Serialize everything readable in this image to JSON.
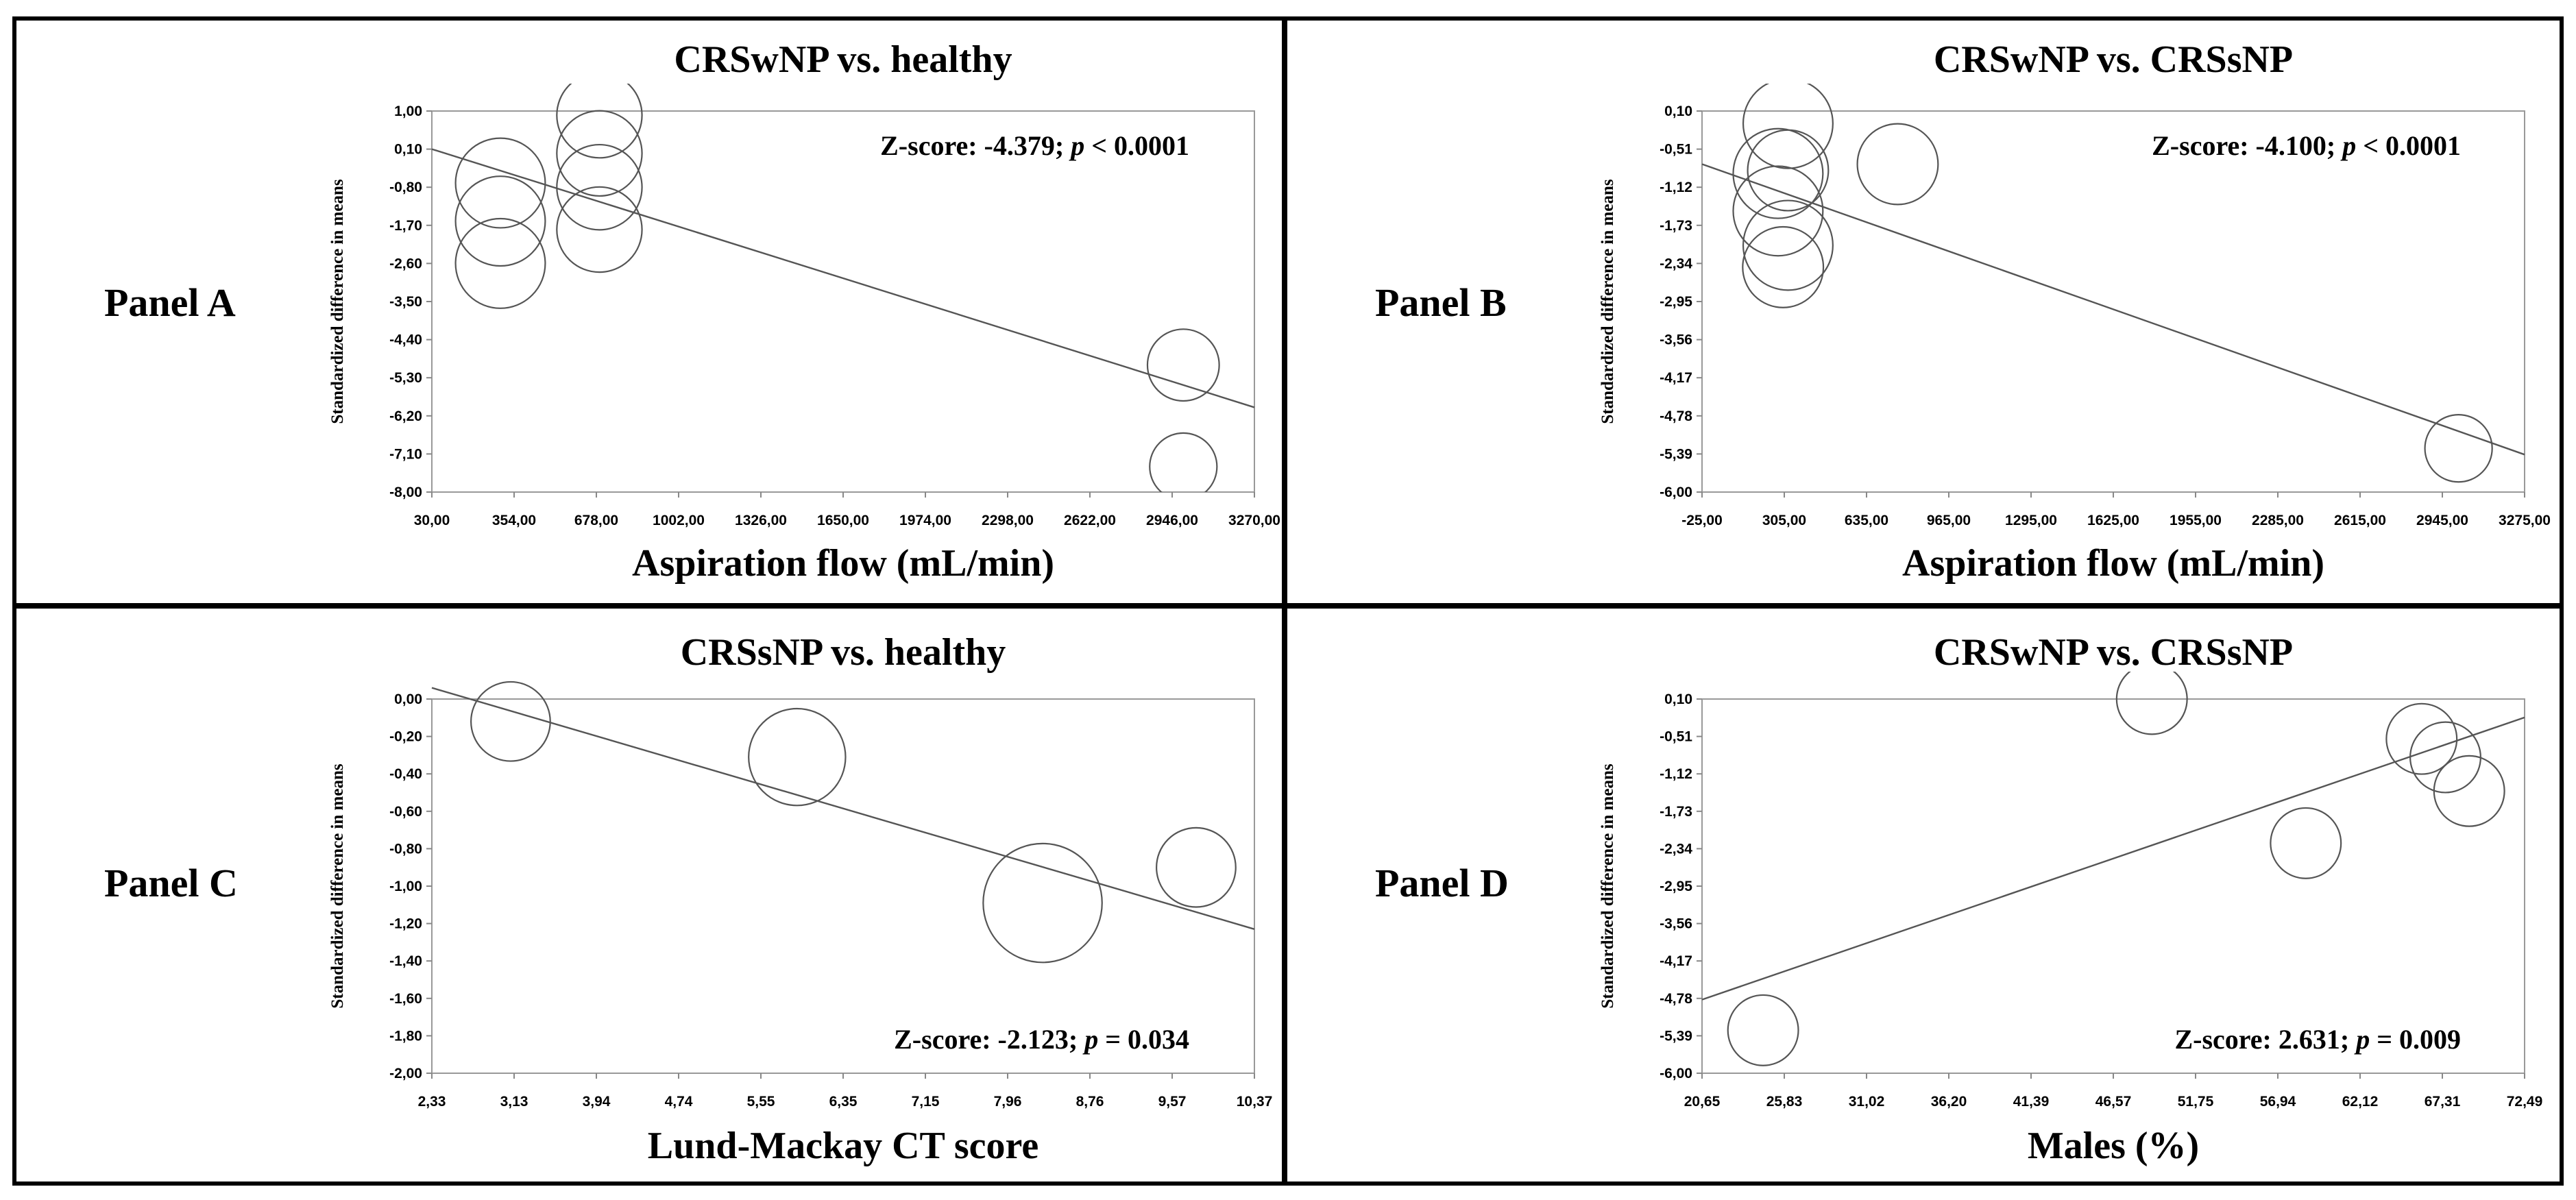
{
  "panels": [
    {
      "label": "Panel A"
    },
    {
      "label": "Panel B"
    },
    {
      "label": "Panel C"
    },
    {
      "label": "Panel D"
    }
  ],
  "chart_data": [
    {
      "type": "scatter",
      "title": "CRSwNP vs. healthy",
      "xlabel": "Aspiration flow (mL/min)",
      "ylabel": "Standardized difference in means",
      "annotation": {
        "text": "Z-score: -4.379; ",
        "p": "p",
        "rest": " < 0.0001"
      },
      "xlim": [
        30,
        3270
      ],
      "ylim": [
        -8,
        1
      ],
      "xticks": [
        "30,00",
        "354,00",
        "678,00",
        "1002,00",
        "1326,00",
        "1650,00",
        "1974,00",
        "2298,00",
        "2622,00",
        "2946,00",
        "3270,00"
      ],
      "yticks": [
        "1,00",
        "0,10",
        "-0,80",
        "-1,70",
        "-2,60",
        "-3,50",
        "-4,40",
        "-5,30",
        "-6,20",
        "-7,10",
        "-8,00"
      ],
      "regression": {
        "x": [
          30,
          3270
        ],
        "y": [
          0.1,
          -6.0
        ]
      },
      "bubbles": [
        {
          "x": 300,
          "y": -0.7,
          "r": 1
        },
        {
          "x": 300,
          "y": -1.6,
          "r": 1
        },
        {
          "x": 300,
          "y": -2.6,
          "r": 1
        },
        {
          "x": 690,
          "y": 0.9,
          "r": 0.95
        },
        {
          "x": 690,
          "y": 0.0,
          "r": 0.95
        },
        {
          "x": 690,
          "y": -0.8,
          "r": 0.95
        },
        {
          "x": 690,
          "y": -1.8,
          "r": 0.95
        },
        {
          "x": 2990,
          "y": -5.0,
          "r": 0.8
        },
        {
          "x": 2990,
          "y": -7.4,
          "r": 0.75
        }
      ]
    },
    {
      "type": "scatter",
      "title": "CRSwNP vs. CRSsNP",
      "xlabel": "Aspiration flow (mL/min)",
      "ylabel": "Standardized difference in means",
      "annotation": {
        "text": "Z-score: -4.100; ",
        "p": "p",
        "rest": " < 0.0001"
      },
      "xlim": [
        -25,
        3275
      ],
      "ylim": [
        -6,
        0.1
      ],
      "xticks": [
        "-25,00",
        "305,00",
        "635,00",
        "965,00",
        "1295,00",
        "1625,00",
        "1955,00",
        "2285,00",
        "2615,00",
        "2945,00",
        "3275,00"
      ],
      "yticks": [
        "0,10",
        "-0,51",
        "-1,12",
        "-1,73",
        "-2,34",
        "-2,95",
        "-3,56",
        "-4,17",
        "-4,78",
        "-5,39",
        "-6,00"
      ],
      "regression": {
        "x": [
          -25,
          3275
        ],
        "y": [
          -0.75,
          -5.4
        ]
      },
      "bubbles": [
        {
          "x": 320,
          "y": -0.1,
          "r": 1
        },
        {
          "x": 280,
          "y": -0.9,
          "r": 1
        },
        {
          "x": 280,
          "y": -1.5,
          "r": 1
        },
        {
          "x": 320,
          "y": -2.05,
          "r": 1
        },
        {
          "x": 300,
          "y": -2.4,
          "r": 0.9
        },
        {
          "x": 320,
          "y": -0.85,
          "r": 0.9
        },
        {
          "x": 760,
          "y": -0.75,
          "r": 0.9
        },
        {
          "x": 3010,
          "y": -5.3,
          "r": 0.75
        }
      ]
    },
    {
      "type": "scatter",
      "title": "CRSsNP vs. healthy",
      "xlabel": "Lund-Mackay CT score",
      "ylabel": "Standardized difference in means",
      "annotation": {
        "text": "Z-score: -2.123; ",
        "p": "p",
        "rest": " = 0.034"
      },
      "xlim": [
        2.33,
        10.37
      ],
      "ylim": [
        -2,
        0
      ],
      "xticks": [
        "2,33",
        "3,13",
        "3,94",
        "4,74",
        "5,55",
        "6,35",
        "7,15",
        "7,96",
        "8,76",
        "9,57",
        "10,37"
      ],
      "yticks": [
        "0,00",
        "-0,20",
        "-0,40",
        "-0,60",
        "-0,80",
        "-1,00",
        "-1,20",
        "-1,40",
        "-1,60",
        "-1,80",
        "-2,00"
      ],
      "regression": {
        "x": [
          2.33,
          10.37
        ],
        "y": [
          0.06,
          -1.23
        ]
      },
      "bubbles": [
        {
          "x": 3.1,
          "y": -0.12,
          "r": 0.9
        },
        {
          "x": 5.9,
          "y": -0.31,
          "r": 1.1
        },
        {
          "x": 8.3,
          "y": -1.09,
          "r": 1.35
        },
        {
          "x": 9.8,
          "y": -0.9,
          "r": 0.9
        }
      ]
    },
    {
      "type": "scatter",
      "title": "CRSwNP vs. CRSsNP",
      "xlabel": "Males (%)",
      "ylabel": "Standardized difference in means",
      "annotation": {
        "text": "Z-score: 2.631; ",
        "p": "p",
        "rest": " = 0.009"
      },
      "xlim": [
        20.65,
        72.49
      ],
      "ylim": [
        -6,
        0.1
      ],
      "xticks": [
        "20,65",
        "25,83",
        "31,02",
        "36,20",
        "41,39",
        "46,57",
        "51,75",
        "56,94",
        "62,12",
        "67,31",
        "72,49"
      ],
      "yticks": [
        "0,10",
        "-0,51",
        "-1,12",
        "-1,73",
        "-2,34",
        "-2,95",
        "-3,56",
        "-4,17",
        "-4,78",
        "-5,39",
        "-6,00"
      ],
      "regression": {
        "x": [
          20.65,
          72.49
        ],
        "y": [
          -4.8,
          -0.2
        ]
      },
      "bubbles": [
        {
          "x": 24.5,
          "y": -5.3,
          "r": 0.8
        },
        {
          "x": 49.0,
          "y": 0.1,
          "r": 0.8
        },
        {
          "x": 58.7,
          "y": -2.25,
          "r": 0.8
        },
        {
          "x": 66.0,
          "y": -0.55,
          "r": 0.8
        },
        {
          "x": 67.5,
          "y": -0.85,
          "r": 0.8
        },
        {
          "x": 69.0,
          "y": -1.4,
          "r": 0.8
        }
      ]
    }
  ]
}
